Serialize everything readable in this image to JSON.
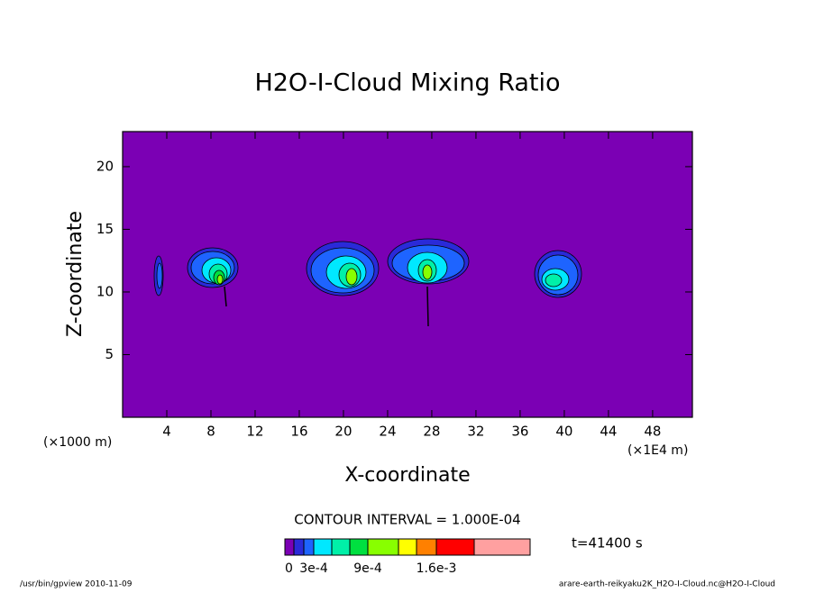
{
  "chart_data": {
    "type": "contour",
    "title": "H2O-I-Cloud Mixing Ratio",
    "x_label": "X-coordinate",
    "y_label": "Z-coordinate",
    "x_unit_left": "(×1000 m)",
    "x_unit_right": "(×1E4 m)",
    "xlim": [
      0,
      51.6
    ],
    "xticks": [
      4,
      8,
      12,
      16,
      20,
      24,
      28,
      32,
      36,
      40,
      44,
      48
    ],
    "ylim": [
      0,
      22.8
    ],
    "yticks": [
      5,
      10,
      15,
      20
    ],
    "contour_interval": "CONTOUR INTERVAL = 1.000E-04",
    "time": "t=41400 s",
    "levels": [
      0,
      0.0001,
      0.0002,
      0.0003,
      0.0004,
      0.0006,
      0.0009,
      0.0012,
      0.0014,
      0.0016,
      0.002,
      0.003
    ],
    "level_ticks": [
      0,
      {
        "value": 0.0003,
        "label": "3e-4"
      },
      {
        "value": 0.0009,
        "label": "9e-4"
      },
      {
        "value": 0.0016,
        "label": "1.6e-3"
      }
    ],
    "colors": [
      "#7b00b4",
      "#2a2ad8",
      "#1e64ff",
      "#00e8ff",
      "#00f0a8",
      "#00e040",
      "#88ff00",
      "#ffff00",
      "#ff8000",
      "#ff0000",
      "#ffa0a0"
    ],
    "footer_left": "/usr/bin/gpview  2010-11-09",
    "footer_right": "arare-earth-reikyaku2K_H2O-I-Cloud.nc@H2O-I-Cloud"
  }
}
